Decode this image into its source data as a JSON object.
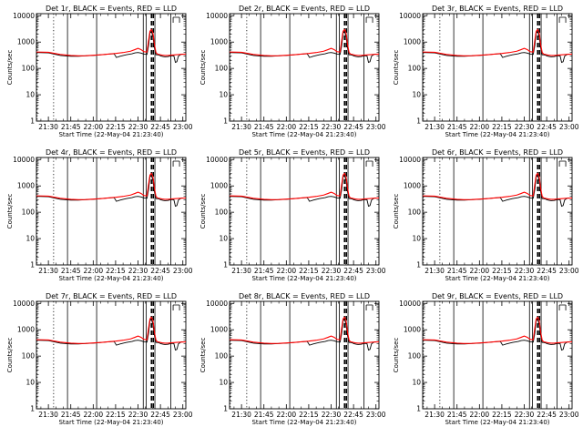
{
  "chart_data": {
    "type": "line",
    "panels": [
      {
        "title": "Det 1r, BLACK = Events, RED = LLD"
      },
      {
        "title": "Det 2r, BLACK = Events, RED = LLD"
      },
      {
        "title": "Det 3r, BLACK = Events, RED = LLD"
      },
      {
        "title": "Det 4r, BLACK = Events, RED = LLD"
      },
      {
        "title": "Det 5r, BLACK = Events, RED = LLD"
      },
      {
        "title": "Det 6r, BLACK = Events, RED = LLD"
      },
      {
        "title": "Det 7r, BLACK = Events, RED = LLD"
      },
      {
        "title": "Det 8r, BLACK = Events, RED = LLD"
      },
      {
        "title": "Det 9r, BLACK = Events, RED = LLD"
      }
    ],
    "xlabel": "Start Time (22-May-04 21:23:40)",
    "ylabel": "Counts/sec",
    "x_range_minutes_after_21_00": [
      22,
      122
    ],
    "x_ticks": [
      "21:30",
      "21:45",
      "22:00",
      "22:15",
      "22:30",
      "22:45",
      "23:00"
    ],
    "y_scale": "log",
    "ylim": [
      1,
      12000
    ],
    "y_ticks": [
      "1",
      "10",
      "100",
      "1000",
      "10000"
    ],
    "series": [
      {
        "name": "BLACK = Events",
        "color": "#000000",
        "x_minutes": [
          22,
          30,
          38,
          45,
          50,
          55,
          60,
          65,
          70,
          74,
          75.5,
          78,
          82,
          86,
          88,
          90,
          92,
          94,
          96,
          97,
          98,
          99,
          100,
          101,
          102,
          103,
          104,
          105,
          106,
          107,
          108,
          110,
          112,
          114,
          115,
          116,
          117,
          119,
          122
        ],
        "values": [
          400,
          390,
          310,
          290,
          290,
          300,
          310,
          330,
          350,
          360,
          260,
          290,
          330,
          360,
          390,
          400,
          380,
          350,
          340,
          700,
          2200,
          2600,
          1500,
          600,
          330,
          330,
          320,
          300,
          290,
          280,
          275,
          280,
          300,
          300,
          170,
          180,
          290,
          350,
          350
        ]
      },
      {
        "name": "RED = LLD",
        "color": "#ff0000",
        "x_minutes": [
          22,
          30,
          38,
          45,
          50,
          55,
          60,
          65,
          70,
          75,
          80,
          85,
          88,
          90,
          92,
          94,
          96,
          97,
          98,
          99,
          100,
          101,
          102,
          103,
          104,
          106,
          108,
          110,
          112,
          115,
          118,
          122
        ],
        "values": [
          420,
          410,
          340,
          310,
          300,
          305,
          315,
          330,
          350,
          370,
          400,
          450,
          520,
          580,
          520,
          430,
          420,
          1100,
          2600,
          3000,
          2200,
          800,
          400,
          350,
          340,
          320,
          310,
          310,
          320,
          330,
          340,
          350
        ]
      }
    ],
    "vertical_lines": {
      "dotted": [
        22.5,
        33.5
      ],
      "solid": [
        42.8,
        62.3,
        93.5,
        95.5,
        101.3,
        112
      ],
      "dashed": [
        99,
        100.2
      ]
    },
    "grid": false,
    "legend": "none"
  }
}
